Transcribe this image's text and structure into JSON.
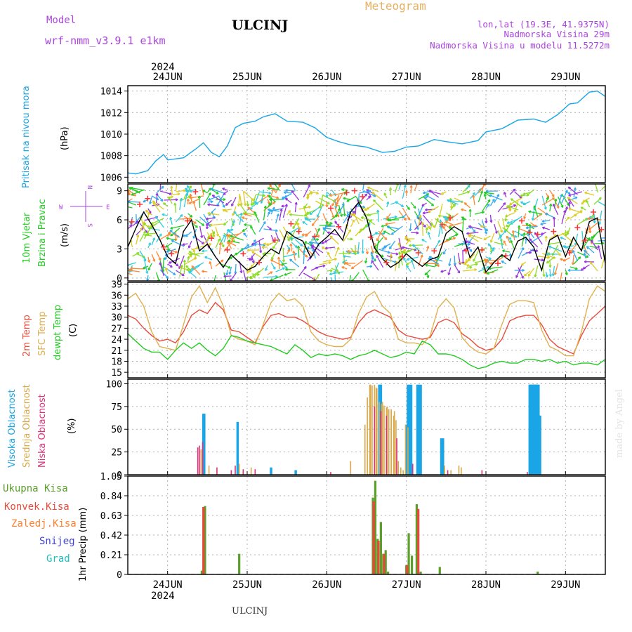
{
  "header": {
    "model_label": "Model",
    "model_name": "wrf-nmm_v3.9.1  e1km",
    "station": "ULCINJ",
    "product": "Meteogram",
    "lonlat": "lon,lat (19.3E, 41.9375N)",
    "altitude": "Nadmorska Visina 29m",
    "model_altitude": "Nadmorska Visina u modelu 11.5272m",
    "credit": "made by Angel",
    "footer_station": "ULCINJ"
  },
  "colors": {
    "pressure": "#1aa6e6",
    "wind_speed": "#000000",
    "gust": "#ff3030",
    "t2m": "#e84a3a",
    "sfc": "#e0b050",
    "dew": "#22cc22",
    "cloud_high": "#1aa6e6",
    "cloud_mid": "#d9a84a",
    "cloud_low": "#e0307a",
    "precip_total": "#5aa02a",
    "precip_conv": "#e84a3a",
    "precip_frozen": "#ff8030",
    "precip_snow": "#4040e0",
    "precip_graupel": "#20c0c0",
    "title": "#000000",
    "violet": "#aa44dd",
    "orange_text": "#e8b060"
  },
  "time_axis": {
    "year": "2024",
    "day_labels": [
      "24JUN",
      "25JUN",
      "26JUN",
      "27JUN",
      "28JUN",
      "29JUN"
    ],
    "x_range_days": [
      23.5,
      29.5
    ]
  },
  "chart_data": [
    {
      "id": "pressure",
      "type": "line",
      "ylabel": "Pritisak na nivou mora",
      "unit": "(hPa)",
      "ylim": [
        1005.5,
        1014.5
      ],
      "yticks": [
        1006,
        1008,
        1010,
        1012,
        1014
      ],
      "grid": true,
      "series": [
        {
          "key": "msl",
          "x": [
            23.5,
            23.6,
            23.75,
            23.85,
            23.95,
            24.0,
            24.2,
            24.35,
            24.45,
            24.55,
            24.65,
            24.75,
            24.85,
            24.95,
            25.1,
            25.2,
            25.35,
            25.5,
            25.7,
            25.85,
            26.0,
            26.15,
            26.3,
            26.5,
            26.7,
            26.85,
            27.0,
            27.15,
            27.35,
            27.5,
            27.7,
            27.9,
            28.0,
            28.2,
            28.4,
            28.6,
            28.75,
            28.9,
            29.05,
            29.15,
            29.3,
            29.4,
            29.5
          ],
          "y": [
            1006.4,
            1006.3,
            1006.6,
            1007.5,
            1008.1,
            1007.6,
            1007.8,
            1008.6,
            1009.2,
            1008.3,
            1007.9,
            1008.9,
            1010.6,
            1011.0,
            1011.2,
            1011.6,
            1011.9,
            1011.2,
            1011.1,
            1010.6,
            1009.7,
            1009.3,
            1009.0,
            1008.8,
            1008.3,
            1008.4,
            1008.8,
            1008.9,
            1009.5,
            1009.3,
            1009.1,
            1009.4,
            1010.2,
            1010.5,
            1011.3,
            1011.4,
            1011.1,
            1011.8,
            1012.8,
            1012.9,
            1013.9,
            1014.0,
            1013.5
          ]
        }
      ]
    },
    {
      "id": "wind",
      "type": "line",
      "ylabel": "10m Vjetar Brzina i Pravac",
      "ylabel_line1": "10m Vjetar",
      "ylabel_line2": "Brzina i Pravac",
      "unit": "(m/s)",
      "compass": {
        "n": "N",
        "w": "W",
        "e": "E",
        "s": "S"
      },
      "ylim": [
        -0.3,
        9.7
      ],
      "yticks": [
        0,
        3,
        6,
        9
      ],
      "grid": true,
      "series": [
        {
          "key": "speed",
          "x": [
            23.5,
            23.6,
            23.7,
            23.8,
            23.9,
            24.0,
            24.1,
            24.2,
            24.3,
            24.4,
            24.5,
            24.6,
            24.7,
            24.8,
            24.9,
            25.0,
            25.1,
            25.2,
            25.3,
            25.4,
            25.5,
            25.6,
            25.7,
            25.8,
            25.9,
            26.0,
            26.1,
            26.2,
            26.3,
            26.4,
            26.5,
            26.6,
            26.7,
            26.8,
            26.9,
            27.0,
            27.1,
            27.2,
            27.3,
            27.4,
            27.5,
            27.6,
            27.7,
            27.8,
            27.9,
            28.0,
            28.1,
            28.2,
            28.3,
            28.4,
            28.5,
            28.6,
            28.7,
            28.8,
            28.9,
            29.0,
            29.1,
            29.2,
            29.3,
            29.4,
            29.5
          ],
          "y": [
            3.2,
            5.1,
            6.8,
            5.5,
            4.0,
            2.2,
            1.5,
            4.8,
            6.0,
            2.8,
            3.5,
            2.2,
            1.1,
            2.4,
            1.6,
            0.8,
            1.2,
            2.2,
            3.0,
            2.5,
            4.8,
            4.2,
            3.8,
            2.1,
            3.5,
            4.2,
            5.0,
            3.9,
            6.8,
            7.8,
            6.2,
            3.1,
            2.0,
            1.1,
            1.6,
            2.5,
            1.8,
            1.2,
            1.9,
            2.2,
            4.6,
            5.3,
            4.8,
            2.1,
            3.2,
            0.6,
            1.6,
            2.4,
            1.8,
            3.8,
            4.2,
            3.2,
            0.8,
            3.9,
            4.4,
            2.2,
            4.2,
            2.8,
            5.8,
            6.2,
            1.5
          ]
        },
        {
          "key": "gust",
          "x": [
            23.55,
            23.65,
            23.75,
            23.95,
            24.05,
            24.25,
            24.35,
            24.55,
            24.75,
            24.95,
            25.15,
            25.35,
            25.55,
            25.65,
            25.85,
            26.05,
            26.15,
            26.25,
            26.35,
            26.45,
            26.55,
            26.75,
            26.95,
            27.15,
            27.35,
            27.45,
            27.55,
            27.75,
            27.95,
            28.15,
            28.25,
            28.45,
            28.55,
            28.65,
            28.85,
            29.05,
            29.15,
            29.25,
            29.35,
            29.45
          ],
          "y": [
            5.8,
            7.6,
            8.2,
            3.2,
            2.5,
            5.9,
            8.9,
            4.1,
            2.9,
            2.5,
            1.6,
            3.9,
            5.6,
            4.8,
            4.3,
            7.2,
            5.3,
            8.8,
            9.0,
            8.4,
            4.2,
            1.6,
            2.2,
            2.6,
            2.8,
            5.5,
            6.2,
            2.8,
            2.9,
            1.5,
            2.3,
            5.9,
            4.7,
            4.5,
            4.8,
            2.6,
            5.2,
            3.9,
            6.8,
            5.0
          ]
        }
      ]
    },
    {
      "id": "temperature",
      "type": "line",
      "ylabel": "2m Temp SFC Temp dewpt Temp",
      "label_t2m": "2m Temp",
      "label_sfc": "SFC Temp",
      "label_dew": "dewpt Temp",
      "unit": "(C)",
      "ylim": [
        13.5,
        39.5
      ],
      "yticks": [
        15,
        18,
        21,
        24,
        27,
        30,
        33,
        36,
        39
      ],
      "grid": true,
      "series": [
        {
          "key": "t2m",
          "x": [
            23.5,
            23.6,
            23.7,
            23.8,
            23.9,
            24.0,
            24.1,
            24.2,
            24.3,
            24.4,
            24.5,
            24.6,
            24.7,
            24.8,
            24.9,
            25.0,
            25.1,
            25.2,
            25.3,
            25.4,
            25.5,
            25.6,
            25.7,
            25.8,
            25.9,
            26.0,
            26.1,
            26.2,
            26.3,
            26.4,
            26.5,
            26.6,
            26.7,
            26.8,
            26.9,
            27.0,
            27.1,
            27.2,
            27.3,
            27.4,
            27.5,
            27.6,
            27.7,
            27.8,
            27.9,
            28.0,
            28.1,
            28.2,
            28.3,
            28.4,
            28.5,
            28.6,
            28.7,
            28.8,
            28.9,
            29.0,
            29.1,
            29.2,
            29.3,
            29.4,
            29.5
          ],
          "y": [
            30.5,
            29.5,
            27.0,
            25.0,
            23.5,
            24.0,
            23.0,
            26.0,
            30.5,
            32.0,
            31.0,
            34.0,
            32.0,
            26.5,
            26.0,
            24.5,
            23.0,
            27.5,
            30.5,
            31.0,
            30.0,
            30.0,
            29.0,
            27.5,
            26.0,
            25.0,
            24.5,
            24.0,
            24.5,
            28.5,
            31.0,
            32.0,
            31.0,
            30.0,
            26.5,
            25.0,
            24.5,
            24.0,
            24.5,
            28.5,
            29.5,
            28.5,
            25.5,
            24.0,
            22.0,
            21.0,
            21.5,
            24.0,
            29.0,
            30.0,
            30.5,
            30.5,
            28.0,
            24.0,
            22.0,
            21.0,
            20.0,
            25.0,
            29.0,
            31.0,
            33.0
          ]
        },
        {
          "key": "sfc",
          "x": [
            23.5,
            23.6,
            23.7,
            23.8,
            23.9,
            24.0,
            24.1,
            24.2,
            24.3,
            24.4,
            24.5,
            24.6,
            24.7,
            24.8,
            24.9,
            25.0,
            25.1,
            25.2,
            25.3,
            25.4,
            25.5,
            25.6,
            25.7,
            25.8,
            25.9,
            26.0,
            26.1,
            26.2,
            26.3,
            26.4,
            26.5,
            26.6,
            26.7,
            26.8,
            26.9,
            27.0,
            27.1,
            27.2,
            27.3,
            27.4,
            27.5,
            27.6,
            27.7,
            27.8,
            27.9,
            28.0,
            28.1,
            28.2,
            28.3,
            28.4,
            28.5,
            28.6,
            28.7,
            28.8,
            28.9,
            29.0,
            29.1,
            29.2,
            29.3,
            29.4,
            29.5
          ],
          "y": [
            35.0,
            36.5,
            33.0,
            26.0,
            22.0,
            21.5,
            21.0,
            28.0,
            35.5,
            38.5,
            34.0,
            38.0,
            33.0,
            25.0,
            24.0,
            23.5,
            22.5,
            28.0,
            34.0,
            36.5,
            34.5,
            35.0,
            33.0,
            26.0,
            23.5,
            22.5,
            22.0,
            22.0,
            24.0,
            31.0,
            35.5,
            37.0,
            33.0,
            31.0,
            24.0,
            23.0,
            23.0,
            22.5,
            25.0,
            32.5,
            35.0,
            32.5,
            24.5,
            22.0,
            20.5,
            20.0,
            21.5,
            28.0,
            33.5,
            34.5,
            34.5,
            34.0,
            26.5,
            22.0,
            21.0,
            19.5,
            19.5,
            26.0,
            35.0,
            38.5,
            37.0
          ]
        },
        {
          "key": "dew",
          "x": [
            23.5,
            23.6,
            23.7,
            23.8,
            23.9,
            24.0,
            24.1,
            24.2,
            24.3,
            24.4,
            24.5,
            24.6,
            24.7,
            24.8,
            24.9,
            25.0,
            25.1,
            25.2,
            25.3,
            25.4,
            25.5,
            25.6,
            25.7,
            25.8,
            25.9,
            26.0,
            26.1,
            26.2,
            26.3,
            26.4,
            26.5,
            26.6,
            26.7,
            26.8,
            26.9,
            27.0,
            27.1,
            27.2,
            27.3,
            27.4,
            27.5,
            27.6,
            27.7,
            27.8,
            27.9,
            28.0,
            28.1,
            28.2,
            28.3,
            28.4,
            28.5,
            28.6,
            28.7,
            28.8,
            28.9,
            29.0,
            29.1,
            29.2,
            29.3,
            29.4,
            29.5
          ],
          "y": [
            25.5,
            23.5,
            21.5,
            20.5,
            20.5,
            18.5,
            21.0,
            23.0,
            21.5,
            23.0,
            21.0,
            19.5,
            21.5,
            25.0,
            24.5,
            23.5,
            23.0,
            22.5,
            22.0,
            21.0,
            20.0,
            22.5,
            21.0,
            19.0,
            20.0,
            19.5,
            20.0,
            19.5,
            18.5,
            19.5,
            20.0,
            21.0,
            20.0,
            19.0,
            19.5,
            20.5,
            20.0,
            23.5,
            22.5,
            20.0,
            20.0,
            19.5,
            18.5,
            17.0,
            16.0,
            16.5,
            17.5,
            18.0,
            17.5,
            17.5,
            18.5,
            18.5,
            18.0,
            18.5,
            17.5,
            18.0,
            17.0,
            17.5,
            17.5,
            17.0,
            18.5
          ]
        }
      ]
    },
    {
      "id": "clouds",
      "type": "bar",
      "ylabel": "Visoka Oblacnost Srednja Oblacnost Niska Oblacnost",
      "label_high": "Visoka Oblacnost",
      "label_mid": "Srednja Oblacnost",
      "label_low": "Niska Oblacnost",
      "unit": "(%)",
      "ylim": [
        0,
        105
      ],
      "yticks": [
        0,
        25,
        50,
        75,
        100
      ],
      "grid": true,
      "series": [
        {
          "key": "high",
          "x": [
            24.45,
            24.46,
            24.88,
            25.3,
            25.61,
            26.66,
            26.67,
            26.68,
            27.0,
            27.02,
            27.04,
            27.06,
            27.14,
            27.16,
            27.18,
            27.44,
            27.46,
            28.55,
            28.56,
            28.57,
            28.58,
            28.59,
            28.6,
            28.61,
            28.62,
            28.63,
            28.64,
            28.65,
            28.66,
            28.67,
            28.68
          ],
          "y": [
            67,
            67,
            58,
            8,
            5,
            99,
            99,
            99,
            55,
            99,
            99,
            99,
            99,
            99,
            99,
            40,
            40,
            99,
            99,
            99,
            99,
            99,
            99,
            99,
            99,
            99,
            99,
            99,
            99,
            65,
            65
          ]
        },
        {
          "key": "mid",
          "x": [
            24.42,
            24.52,
            24.9,
            25.05,
            26.3,
            26.55,
            26.62,
            26.7,
            26.76,
            26.81,
            26.85,
            26.99,
            27.02,
            27.48,
            27.56,
            27.66,
            27.69
          ],
          "y": [
            28,
            10,
            12,
            8,
            15,
            99,
            96,
            80,
            75,
            72,
            70,
            55,
            52,
            10,
            5,
            10,
            8
          ],
          "x_ramp": [
            26.48,
            26.51,
            26.54,
            26.57,
            26.6,
            26.63,
            26.66,
            26.69,
            26.72,
            26.75,
            26.78,
            26.81,
            26.84,
            26.87,
            26.9,
            26.93,
            26.96
          ],
          "y_ramp": [
            55,
            85,
            99,
            98,
            99,
            95,
            80,
            78,
            76,
            74,
            72,
            70,
            65,
            60,
            15,
            8,
            5
          ]
        },
        {
          "key": "low",
          "x": [
            24.38,
            24.4,
            24.44,
            24.62,
            24.8,
            24.85,
            24.95,
            25.1,
            26.05,
            26.6,
            26.68,
            26.75,
            26.88,
            27.08,
            27.52,
            27.95,
            28.52
          ],
          "y": [
            30,
            32,
            36,
            8,
            5,
            10,
            6,
            6,
            3,
            75,
            70,
            65,
            40,
            12,
            5,
            5,
            3
          ]
        }
      ]
    },
    {
      "id": "precip",
      "type": "bar",
      "ylabel": "1hr Precip (mm)",
      "ylim": [
        0,
        1.05
      ],
      "yticks": [
        0,
        0.21,
        0.42,
        0.63,
        0.84,
        1.05
      ],
      "ytick_labels": [
        "0",
        "0.21",
        "0.42",
        "0.63",
        "0.84",
        "1.05"
      ],
      "grid": true,
      "legend": [
        "Ukupna Kisa",
        "Konvek.Kisa",
        "Zaledj.Kisa",
        "Snijeg",
        "Grad"
      ],
      "series": [
        {
          "key": "total",
          "x": [
            24.43,
            24.47,
            24.9,
            26.58,
            26.61,
            26.64,
            26.68,
            26.71,
            26.74,
            26.77,
            27.0,
            27.03,
            27.07,
            27.13,
            27.18,
            27.42,
            28.65
          ],
          "y": [
            0.04,
            0.73,
            0.22,
            0.82,
            1.0,
            0.38,
            0.56,
            0.22,
            0.26,
            0.03,
            0.1,
            0.44,
            0.2,
            0.75,
            0.03,
            0.08,
            0.03
          ]
        },
        {
          "key": "conv",
          "x": [
            24.45,
            26.59,
            26.65,
            26.72,
            27.01,
            27.15
          ],
          "y": [
            0.72,
            0.78,
            0.36,
            0.22,
            0.1,
            0.7
          ]
        }
      ]
    }
  ]
}
